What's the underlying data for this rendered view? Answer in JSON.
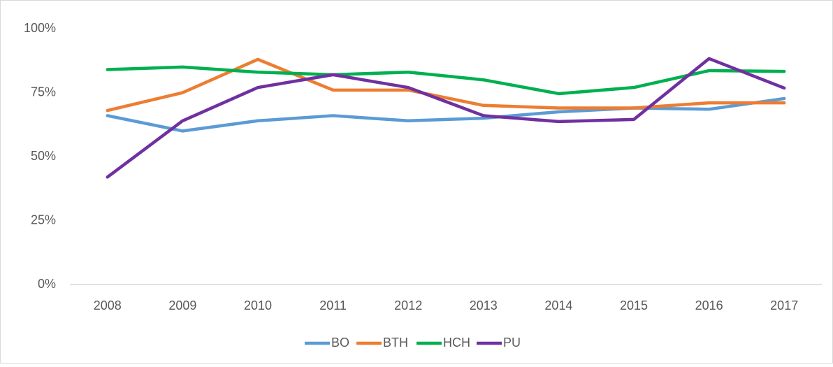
{
  "chart_data": {
    "type": "line",
    "categories": [
      "2008",
      "2009",
      "2010",
      "2011",
      "2012",
      "2013",
      "2014",
      "2015",
      "2016",
      "2017"
    ],
    "series": [
      {
        "name": "BO",
        "color": "#5b9bd5",
        "values": [
          66,
          60,
          64,
          66,
          64,
          65,
          67.5,
          69,
          68.5,
          72.7
        ]
      },
      {
        "name": "BTH",
        "color": "#ed7d31",
        "values": [
          68,
          75,
          88,
          76,
          76,
          70,
          69,
          69,
          71,
          71
        ]
      },
      {
        "name": "HCH",
        "color": "#00b050",
        "values": [
          84,
          85,
          83,
          82,
          83,
          80,
          74.6,
          77,
          83.6,
          83.3
        ]
      },
      {
        "name": "PU",
        "color": "#7030a0",
        "values": [
          42,
          64,
          77,
          82,
          77,
          66,
          63.7,
          64.5,
          88.3,
          76.8
        ]
      }
    ],
    "ylim": [
      0,
      100
    ],
    "yticks": [
      {
        "value": 0,
        "label": "0%"
      },
      {
        "value": 25,
        "label": "25%"
      },
      {
        "value": 50,
        "label": "50%"
      },
      {
        "value": 75,
        "label": "75%"
      },
      {
        "value": 100,
        "label": "100%"
      }
    ],
    "grid": false,
    "legend": "bottom"
  }
}
